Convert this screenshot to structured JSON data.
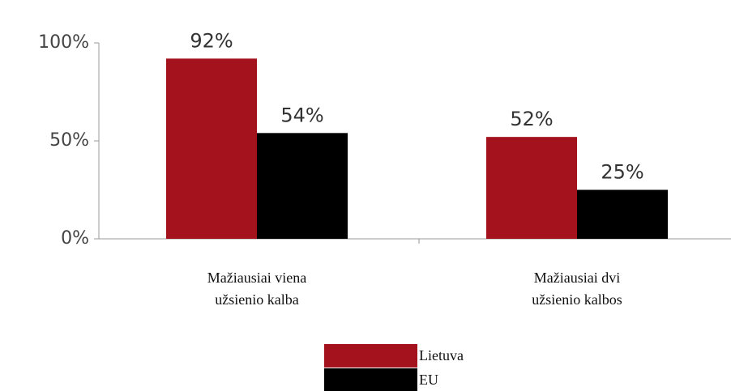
{
  "chart_data": {
    "type": "bar",
    "categories": [
      "Mažiausiai viena užsienio kalba",
      "Mažiausiai dvi užsienio kalbos"
    ],
    "series": [
      {
        "name": "Lietuva",
        "color": "#a3121d",
        "values": [
          92,
          52
        ],
        "value_labels": [
          "92%",
          "52%"
        ]
      },
      {
        "name": "EU",
        "color": "#000000",
        "values": [
          54,
          25
        ],
        "value_labels": [
          "54%",
          "25%"
        ]
      }
    ],
    "ylim": [
      0,
      100
    ],
    "yticks": [
      {
        "value": 0,
        "label": "0%"
      },
      {
        "value": 50,
        "label": "50%"
      },
      {
        "value": 100,
        "label": "100%"
      }
    ],
    "legend": "bottom"
  }
}
